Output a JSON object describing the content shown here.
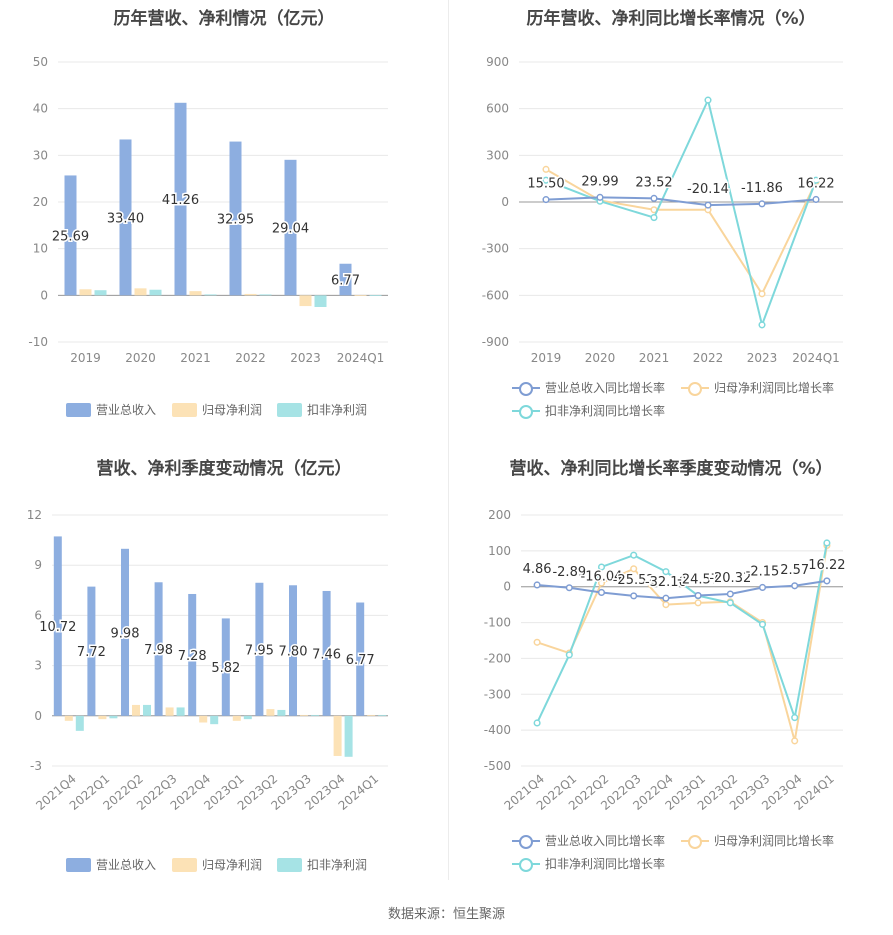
{
  "colors": {
    "revenue": "#8DAEE0",
    "net_profit": "#FCE2B6",
    "deducted_profit": "#A6E3E5",
    "revenue_line": "#7F9DD3",
    "net_profit_line": "#F9D59C",
    "deducted_line": "#7ED8DB"
  },
  "source": "数据来源：恒生聚源",
  "chart_data": [
    {
      "id": "annual_amounts",
      "type": "bar",
      "title": "历年营收、净利情况（亿元）",
      "categories": [
        "2019",
        "2020",
        "2021",
        "2022",
        "2023",
        "2024Q1"
      ],
      "ylim": [
        -10,
        50
      ],
      "yticks": [
        50,
        40,
        30,
        20,
        10,
        0,
        -10
      ],
      "series": [
        {
          "name": "营业总收入",
          "values": [
            25.69,
            33.4,
            41.26,
            32.95,
            29.04,
            6.77
          ]
        },
        {
          "name": "归母净利润",
          "values": [
            1.3,
            1.5,
            0.9,
            0.3,
            -2.3,
            0.05
          ]
        },
        {
          "name": "扣非净利润",
          "values": [
            1.1,
            1.2,
            0.2,
            0.2,
            -2.5,
            0.05
          ]
        }
      ],
      "labels": [
        "25.69",
        "33.40",
        "41.26",
        "32.95",
        "29.04",
        "6.77"
      ]
    },
    {
      "id": "annual_growth",
      "type": "line",
      "title": "历年营收、净利同比增长率情况（%）",
      "categories": [
        "2019",
        "2020",
        "2021",
        "2022",
        "2023",
        "2024Q1"
      ],
      "ylim": [
        -900,
        900
      ],
      "yticks": [
        900,
        600,
        300,
        0,
        -300,
        -600,
        -900
      ],
      "series": [
        {
          "name": "营业总收入同比增长率",
          "values": [
            15.5,
            29.99,
            23.52,
            -20.14,
            -11.86,
            16.22
          ]
        },
        {
          "name": "归母净利润同比增长率",
          "values": [
            210,
            10,
            -50,
            -50,
            -590,
            130
          ]
        },
        {
          "name": "扣非净利润同比增长率",
          "values": [
            140,
            5,
            -100,
            655,
            -790,
            140
          ]
        }
      ],
      "labels": [
        "15.50",
        "29.99",
        "23.52",
        "-20.14",
        "-11.86",
        "16.22"
      ]
    },
    {
      "id": "quarterly_amounts",
      "type": "bar",
      "title": "营收、净利季度变动情况（亿元）",
      "categories": [
        "2021Q4",
        "2022Q1",
        "2022Q2",
        "2022Q3",
        "2022Q4",
        "2023Q1",
        "2023Q2",
        "2023Q3",
        "2023Q4",
        "2024Q1"
      ],
      "ylim": [
        -3,
        12
      ],
      "yticks": [
        12,
        9,
        6,
        3,
        0,
        -3
      ],
      "series": [
        {
          "name": "营业总收入",
          "values": [
            10.72,
            7.72,
            9.98,
            7.98,
            7.28,
            5.82,
            7.95,
            7.8,
            7.46,
            6.77
          ]
        },
        {
          "name": "归母净利润",
          "values": [
            -0.3,
            -0.2,
            0.65,
            0.5,
            -0.4,
            -0.3,
            0.4,
            0.05,
            -2.4,
            0.05
          ]
        },
        {
          "name": "扣非净利润",
          "values": [
            -0.9,
            -0.15,
            0.65,
            0.5,
            -0.5,
            -0.2,
            0.35,
            0.05,
            -2.45,
            0.05
          ]
        }
      ],
      "labels": [
        "10.72",
        "7.72",
        "9.98",
        "7.98",
        "7.28",
        "5.82",
        "7.95",
        "7.80",
        "7.46",
        "6.77"
      ]
    },
    {
      "id": "quarterly_growth",
      "type": "line",
      "title": "营收、净利同比增长率季度变动情况（%）",
      "categories": [
        "2021Q4",
        "2022Q1",
        "2022Q2",
        "2022Q3",
        "2022Q4",
        "2023Q1",
        "2023Q2",
        "2023Q3",
        "2023Q4",
        "2024Q1"
      ],
      "ylim": [
        -500,
        200
      ],
      "yticks": [
        200,
        100,
        0,
        -100,
        -200,
        -300,
        -400,
        -500
      ],
      "series": [
        {
          "name": "营业总收入同比增长率",
          "values": [
            4.86,
            -2.89,
            -16.04,
            -25.52,
            -32.1,
            -24.57,
            -20.32,
            -2.15,
            2.57,
            16.22
          ]
        },
        {
          "name": "归母净利润同比增长率",
          "values": [
            -155,
            -185,
            10,
            50,
            -50,
            -45,
            -42,
            -100,
            -430,
            115
          ]
        },
        {
          "name": "扣非净利润同比增长率",
          "values": [
            -380,
            -190,
            55,
            88,
            42,
            -25,
            -45,
            -105,
            -365,
            122
          ]
        }
      ],
      "labels": [
        "4.86",
        "-2.89",
        "-16.04",
        "-25.52",
        "-32.10",
        "-24.57",
        "-20.32",
        "-2.15",
        "2.57",
        "16.22"
      ]
    }
  ]
}
